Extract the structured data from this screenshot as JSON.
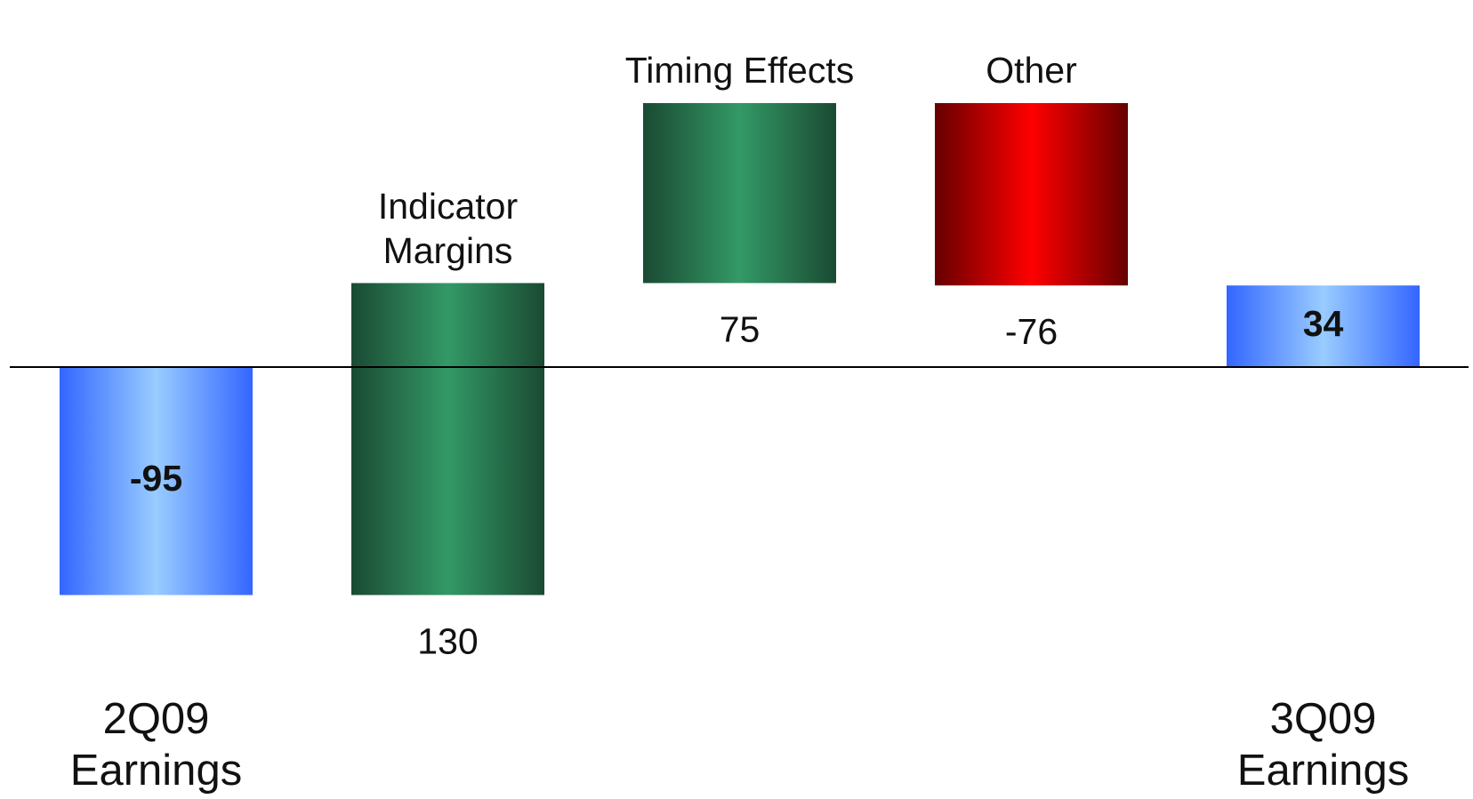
{
  "chart_data": {
    "type": "waterfall",
    "categories": [
      "2Q09 Earnings",
      "Indicator Margins",
      "Timing Effects",
      "Other",
      "3Q09 Earnings"
    ],
    "values": [
      -95,
      130,
      75,
      -76,
      34
    ],
    "totals": [
      true,
      false,
      false,
      false,
      true
    ],
    "colors": {
      "total": [
        "#3366ff",
        "#99ccff"
      ],
      "increase": [
        "#1a4a33",
        "#339966"
      ],
      "decrease": [
        "#660000",
        "#ff0000"
      ]
    }
  }
}
